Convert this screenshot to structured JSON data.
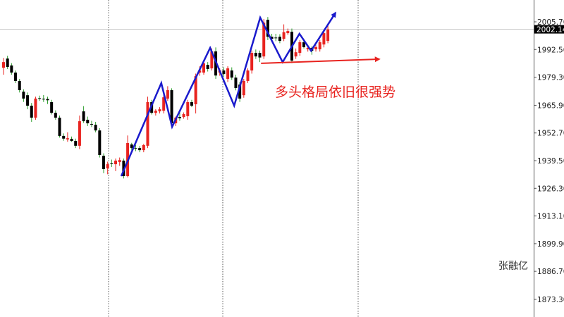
{
  "chart_data": {
    "type": "candlestick",
    "title": "",
    "xlabel": "",
    "ylabel": "",
    "ylim": [
      1868,
      2018
    ],
    "grid": false,
    "y_ticks": [
      "2005.70",
      "1992.50",
      "1979.30",
      "1965.90",
      "1952.70",
      "1939.50",
      "1926.30",
      "1913.10",
      "1899.90",
      "1886.70",
      "1873.30"
    ],
    "current_price": "2002.14",
    "colors": {
      "up": "#e8231f",
      "down": "#000000",
      "down_wick": "#2e9e2e",
      "trend_line": "#1a1acc",
      "support_line": "#e8231f",
      "price_line": "#c8c8c8"
    },
    "ohlc": [
      [
        1983.8,
        1988.5,
        1980.5,
        1986.5
      ],
      [
        1988.2,
        1989.5,
        1983.2,
        1984.2
      ],
      [
        1984.9,
        1986,
        1980.5,
        1981.5
      ],
      [
        1981.5,
        1982.5,
        1976.5,
        1977.5
      ],
      [
        1977.5,
        1978.5,
        1972,
        1973.1
      ],
      [
        1972.4,
        1973.5,
        1967.5,
        1969.1
      ],
      [
        1970.7,
        1972,
        1964,
        1965.7
      ],
      [
        1965.7,
        1967,
        1958,
        1960.0
      ],
      [
        1960.0,
        1970,
        1959,
        1969.1
      ],
      [
        1969.3,
        1970.5,
        1968,
        1969.0
      ],
      [
        1969.0,
        1970.8,
        1967.5,
        1968.7
      ],
      [
        1968.9,
        1970,
        1966.5,
        1968.3
      ],
      [
        1967.4,
        1968.5,
        1961.5,
        1962.3
      ],
      [
        1962.3,
        1963.5,
        1959,
        1960.0
      ],
      [
        1960.0,
        1961,
        1950.5,
        1951.3
      ],
      [
        1951.3,
        1952.5,
        1949,
        1950.0
      ],
      [
        1949.6,
        1953,
        1948.5,
        1950.2
      ],
      [
        1949.9,
        1951,
        1948.5,
        1948.9
      ],
      [
        1948.9,
        1950,
        1945.5,
        1946.6
      ],
      [
        1946.6,
        1961,
        1945,
        1958.3
      ],
      [
        1963.0,
        1965.5,
        1957.5,
        1958.3
      ],
      [
        1959.0,
        1960.5,
        1956,
        1957.3
      ],
      [
        1957.0,
        1958.5,
        1955.5,
        1956.8
      ],
      [
        1956.6,
        1958,
        1953,
        1953.9
      ],
      [
        1953.9,
        1955,
        1941,
        1942.2
      ],
      [
        1941.8,
        1943,
        1933.5,
        1935.5
      ],
      [
        1935.8,
        1939,
        1933,
        1937.8
      ],
      [
        1938.2,
        1940,
        1936.5,
        1938.0
      ],
      [
        1937.8,
        1940.5,
        1934.5,
        1939.5
      ],
      [
        1938.8,
        1941,
        1937,
        1939.8
      ],
      [
        1939.5,
        1940.5,
        1931,
        1932.1
      ],
      [
        1932.1,
        1951.5,
        1931.5,
        1947.9
      ],
      [
        1947.2,
        1948,
        1944.5,
        1945.5
      ],
      [
        1945.5,
        1947,
        1944,
        1945.3
      ],
      [
        1945.5,
        1946.5,
        1943.5,
        1944.5
      ],
      [
        1944.5,
        1947.5,
        1943.5,
        1946.9
      ],
      [
        1946.6,
        1970,
        1945.5,
        1967.4
      ],
      [
        1967.4,
        1968.5,
        1961.5,
        1962.3
      ],
      [
        1962.3,
        1964,
        1961,
        1963.3
      ],
      [
        1963.0,
        1965,
        1962,
        1964.0
      ],
      [
        1963.3,
        1971,
        1962,
        1969.7
      ],
      [
        1969.1,
        1975,
        1968,
        1973.1
      ],
      [
        1973.1,
        1974,
        1955.5,
        1957.3
      ],
      [
        1957.3,
        1960.5,
        1956,
        1960.0
      ],
      [
        1960.3,
        1962.5,
        1958.5,
        1959.7
      ],
      [
        1960.3,
        1962.5,
        1959.5,
        1961.7
      ],
      [
        1960.7,
        1968.5,
        1959,
        1967.4
      ],
      [
        1967.4,
        1968.5,
        1965,
        1965.7
      ],
      [
        1966.4,
        1981,
        1962,
        1979.8
      ],
      [
        1981.5,
        1984.5,
        1980,
        1982.5
      ],
      [
        1981.5,
        1987,
        1980.5,
        1985.9
      ],
      [
        1985.2,
        1986.5,
        1982,
        1983.2
      ],
      [
        1983.5,
        1993,
        1982.5,
        1991.6
      ],
      [
        1991.6,
        1993.5,
        1978.5,
        1980.1
      ],
      [
        1981.5,
        1983.5,
        1980,
        1982.5
      ],
      [
        1982.5,
        1984,
        1979.5,
        1980.8
      ],
      [
        1978.5,
        1984.5,
        1977,
        1983.5
      ],
      [
        1982.5,
        1984,
        1978,
        1979.1
      ],
      [
        1979.1,
        1980.5,
        1973,
        1974.1
      ],
      [
        1975.8,
        1977,
        1967.5,
        1969.1
      ],
      [
        1970.7,
        1978.5,
        1969.5,
        1977.5
      ],
      [
        1977.5,
        1983.5,
        1976.5,
        1982.5
      ],
      [
        1982.5,
        1992,
        1981,
        1990.9
      ],
      [
        1990.9,
        1992.5,
        1988,
        1989.2
      ],
      [
        1990.9,
        1992,
        1986.5,
        1988.7
      ],
      [
        1989.2,
        2007,
        1988,
        2005.3
      ],
      [
        2006.7,
        2008,
        1997,
        1998.6
      ],
      [
        1998.6,
        2000,
        1996.5,
        1997.6
      ],
      [
        1998.2,
        2000,
        1996.5,
        1998.0
      ],
      [
        1998.6,
        1999.8,
        1995.5,
        1996.6
      ],
      [
        1997.6,
        2004.5,
        1996.5,
        2000.8
      ],
      [
        2000.3,
        2002.5,
        1999.5,
        2001.3
      ],
      [
        2001.0,
        2002.5,
        1986,
        1987.2
      ],
      [
        1989.2,
        1993,
        1988,
        1991.2
      ],
      [
        1990.9,
        1997,
        1989.5,
        1996.0
      ],
      [
        1996.0,
        1997,
        1993,
        1993.6
      ],
      [
        1992.6,
        1994.5,
        1991.5,
        1993.3
      ],
      [
        1993.3,
        1994,
        1990,
        1991.9
      ],
      [
        1992.6,
        1994.5,
        1991.5,
        1993.6
      ],
      [
        1992.6,
        1997,
        1991.5,
        1996.0
      ],
      [
        1994.9,
        2002,
        1993.5,
        2000.3
      ],
      [
        1996.6,
        2004,
        1995.5,
        2002.1
      ]
    ],
    "trend_line": [
      [
        29.4,
        1932.1
      ],
      [
        39.4,
        1976.5
      ],
      [
        42.1,
        1955.6
      ],
      [
        51.6,
        1993.3
      ],
      [
        57.6,
        1965.7
      ],
      [
        64.1,
        2007.7
      ],
      [
        69.7,
        1986.5
      ],
      [
        73.9,
        2000.0
      ],
      [
        76.8,
        1991.9
      ],
      [
        82.9,
        2010.0
      ]
    ],
    "support_line": [
      [
        64.3,
        1985.9
      ],
      [
        93.8,
        1987.9
      ]
    ],
    "annotation": "多头格局依旧很强势",
    "watermark": "张融亿"
  }
}
